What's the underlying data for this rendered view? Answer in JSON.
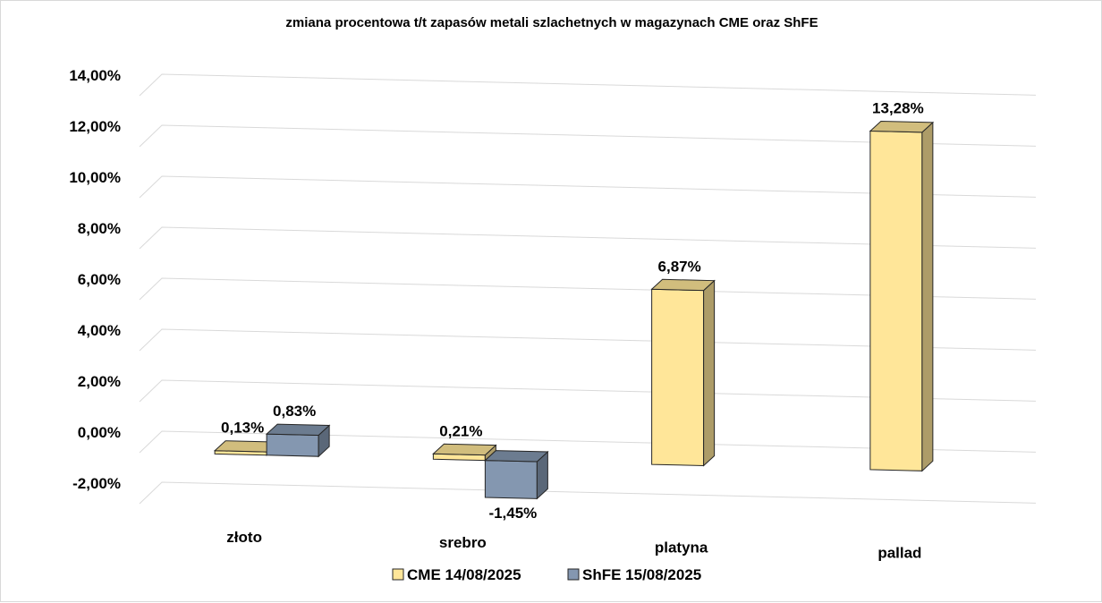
{
  "chart_data": {
    "type": "bar",
    "title": "zmiana procentowa t/t zapasów metali szlachetnych w magazynach CME oraz ShFE",
    "categories": [
      "złoto",
      "srebro",
      "platyna",
      "pallad"
    ],
    "series": [
      {
        "name": "CME 14/08/2025",
        "values": [
          0.13,
          0.21,
          6.87,
          13.28
        ],
        "labels": [
          "0,13%",
          "0,21%",
          "6,87%",
          "13,28%"
        ],
        "color": "#ffe699"
      },
      {
        "name": "ShFE 15/08/2025",
        "values": [
          0.83,
          -1.45,
          null,
          null
        ],
        "labels": [
          "0,83%",
          "-1,45%",
          "",
          ""
        ],
        "color": "#8497b0"
      }
    ],
    "yticks": [
      "-2,00%",
      "0,00%",
      "2,00%",
      "4,00%",
      "6,00%",
      "8,00%",
      "10,00%",
      "12,00%",
      "14,00%"
    ],
    "ylim": [
      -2,
      14
    ],
    "xlabel": "",
    "ylabel": "",
    "grid": true,
    "legend_position": "bottom"
  }
}
